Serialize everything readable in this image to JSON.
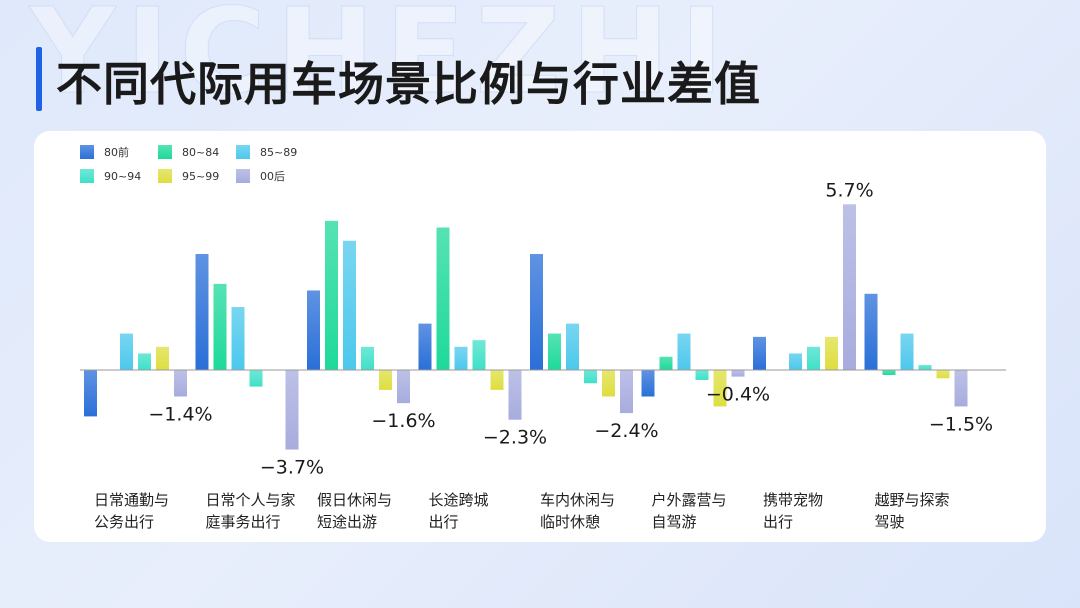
{
  "title": "不同代际用车场景比例与行业差值",
  "watermark": "YICHEZHI",
  "chart_data": {
    "type": "bar",
    "title": "不同代际用车场景比例与行业差值",
    "categories": [
      "日常通勤与\n公务出行",
      "日常个人与家\n庭事务出行",
      "假日休闲与\n短途出游",
      "长途跨城\n出行",
      "车内休闲与\n临时休憩",
      "户外露营与\n自驾游",
      "携带宠物\n出行",
      "越野与探索\n驾驶"
    ],
    "series": [
      {
        "name": "80前",
        "color": "#2a6fd8",
        "values": [
          -1.4,
          3.5,
          2.4,
          1.4,
          3.5,
          -0.8,
          1.0,
          2.3
        ]
      },
      {
        "name": "80~84",
        "color": "#1ed99a",
        "values": [
          0.0,
          2.6,
          4.5,
          4.3,
          1.1,
          0.4,
          0.0,
          -0.15
        ]
      },
      {
        "name": "85~89",
        "color": "#4cc8ec",
        "values": [
          1.1,
          1.9,
          3.9,
          0.7,
          1.4,
          1.1,
          0.5,
          1.1
        ]
      },
      {
        "name": "90~94",
        "color": "#3fe0c8",
        "values": [
          0.5,
          -0.5,
          0.7,
          0.9,
          -0.4,
          -0.3,
          0.7,
          0.15
        ]
      },
      {
        "name": "95~99",
        "color": "#dede40",
        "values": [
          0.7,
          0.0,
          -0.6,
          -0.6,
          -0.8,
          -1.1,
          1.0,
          -0.25
        ]
      },
      {
        "name": "00后",
        "color": "#a7acde",
        "values": [
          -0.8,
          -2.4,
          -1.0,
          -1.5,
          -1.3,
          -0.2,
          5.0,
          -1.1
        ]
      }
    ],
    "annotations": [
      {
        "category": "日常通勤与\n公务出行",
        "text": "−1.4%"
      },
      {
        "category": "日常个人与家\n庭事务出行",
        "text": "−3.7%"
      },
      {
        "category": "假日休闲与\n短途出游",
        "text": "−1.6%"
      },
      {
        "category": "长途跨城\n出行",
        "text": "−2.3%"
      },
      {
        "category": "车内休闲与\n临时休憩",
        "text": "−2.4%"
      },
      {
        "category": "户外露营与\n自驾游",
        "text": "−0.4%"
      },
      {
        "category": "携带宠物\n出行",
        "text": "5.7%"
      },
      {
        "category": "越野与探索\n驾驶",
        "text": "−1.5%"
      }
    ],
    "ylim": [
      -2.6,
      5.1
    ],
    "xlabel": "",
    "ylabel": "",
    "grid": false,
    "legend": "top-left"
  }
}
